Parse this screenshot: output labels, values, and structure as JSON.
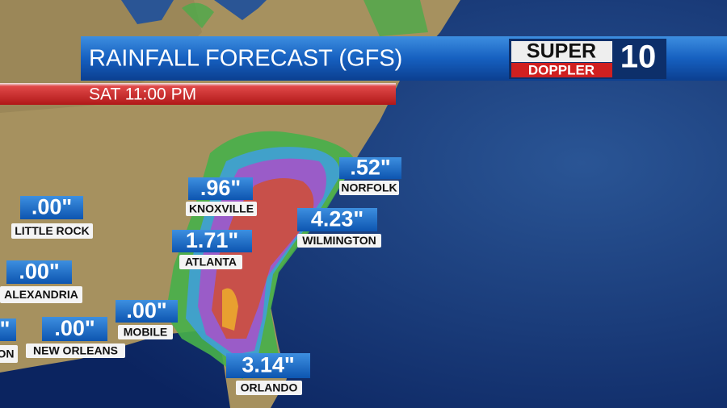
{
  "header": {
    "title": "RAINFALL FORECAST (GFS)",
    "time": "SAT 11:00 PM"
  },
  "logo": {
    "top": "SUPER",
    "bottom": "DOPPLER",
    "number": "10"
  },
  "cities": [
    {
      "value": ".96\"",
      "name": "KNOXVILLE"
    },
    {
      "value": ".52\"",
      "name": "NORFOLK"
    },
    {
      "value": ".00\"",
      "name": "LITTLE ROCK"
    },
    {
      "value": "4.23\"",
      "name": "WILMINGTON"
    },
    {
      "value": "1.71\"",
      "name": "ATLANTA"
    },
    {
      "value": ".00\"",
      "name": "ALEXANDRIA"
    },
    {
      "value": ".00\"",
      "name": "MOBILE"
    },
    {
      "value": ".00\"",
      "name": "NEW ORLEANS"
    },
    {
      "value": "\"",
      "name": "ON"
    },
    {
      "value": "3.14\"",
      "name": "ORLANDO"
    }
  ]
}
